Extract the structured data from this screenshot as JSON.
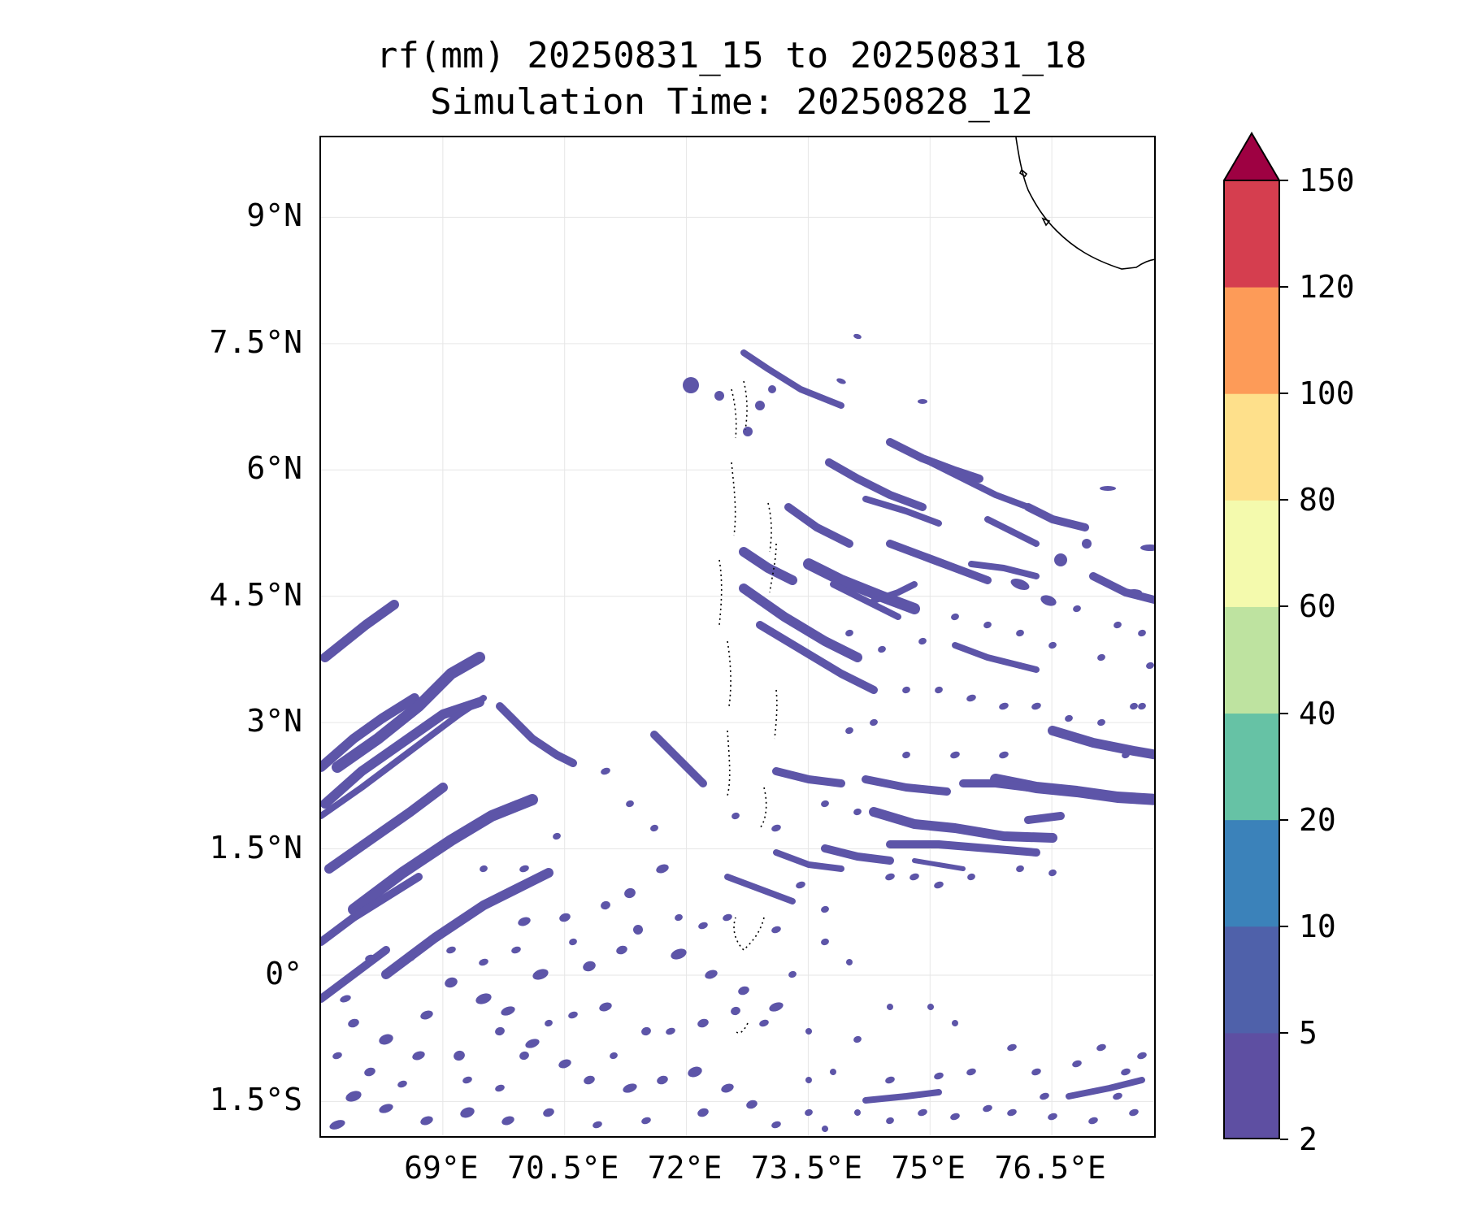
{
  "title_line1": "rf(mm) 20250831_15 to 20250831_18",
  "title_line2": "Simulation Time: 20250828_12",
  "map": {
    "lon_range": [
      67.5,
      77.8
    ],
    "lat_range": [
      -1.95,
      9.95
    ],
    "lat_ticks": [
      {
        "value": 9.0,
        "label": "9°N"
      },
      {
        "value": 7.5,
        "label": "7.5°N"
      },
      {
        "value": 6.0,
        "label": "6°N"
      },
      {
        "value": 4.5,
        "label": "4.5°N"
      },
      {
        "value": 3.0,
        "label": "3°N"
      },
      {
        "value": 1.5,
        "label": "1.5°N"
      },
      {
        "value": 0.0,
        "label": "0°"
      },
      {
        "value": -1.5,
        "label": "1.5°S"
      }
    ],
    "lon_ticks": [
      {
        "value": 69.0,
        "label": "69°E"
      },
      {
        "value": 70.5,
        "label": "70.5°E"
      },
      {
        "value": 72.0,
        "label": "72°E"
      },
      {
        "value": 73.5,
        "label": "73.5°E"
      },
      {
        "value": 75.0,
        "label": "75°E"
      },
      {
        "value": 76.5,
        "label": "76.5°E"
      }
    ],
    "grid": true,
    "rain_color": "#5d55a8",
    "rain_edge": "#4c63ad"
  },
  "colorbar": {
    "levels": [
      {
        "label": "2",
        "color": "#5e4fa2"
      },
      {
        "label": "5",
        "color": "#4f61aa"
      },
      {
        "label": "10",
        "color": "#3b82ba"
      },
      {
        "label": "20",
        "color": "#66c2a5"
      },
      {
        "label": "40",
        "color": "#bee3a0"
      },
      {
        "label": "60",
        "color": "#f4faad"
      },
      {
        "label": "80",
        "color": "#fee08b"
      },
      {
        "label": "100",
        "color": "#fd9b58"
      },
      {
        "label": "120",
        "color": "#d53e4f"
      },
      {
        "label": "150",
        "color": "#9e0142"
      }
    ],
    "extend": "max"
  }
}
